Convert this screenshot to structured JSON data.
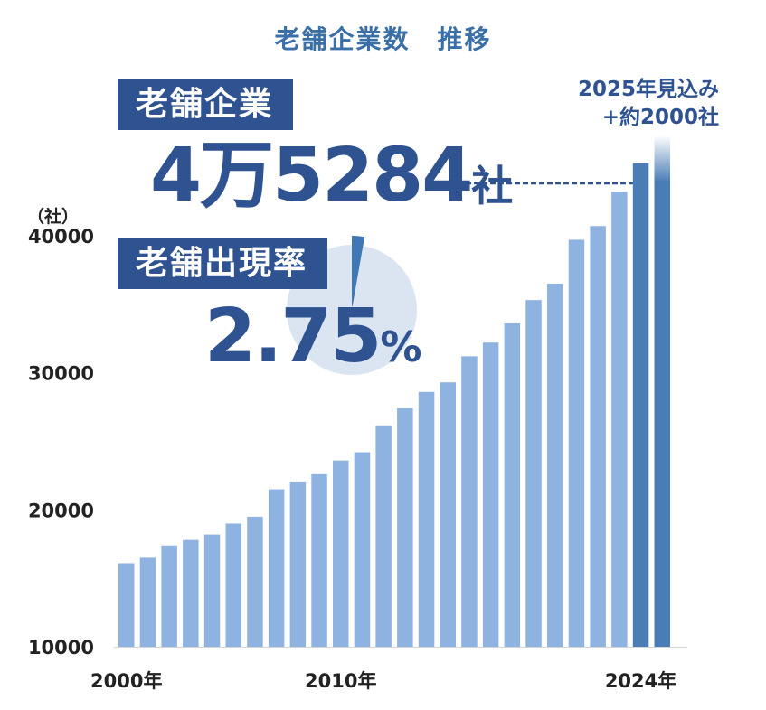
{
  "title": "老舗企業数　推移",
  "shinise": {
    "label": "老舗企業",
    "count_num": "4万5284",
    "count_unit": "社"
  },
  "rate": {
    "label": "老舗出現率",
    "value_num": "2.75",
    "value_unit": "%",
    "fraction": 0.0275
  },
  "projection": {
    "line1": "2025年見込み",
    "line2": "+約2000社"
  },
  "colors": {
    "bar": "#8fb3e0",
    "bar_recent": "#4a7db5",
    "accent": "#2f5391",
    "pie_bg": "#dbe5f2",
    "pie_slice": "#3f78b5"
  },
  "chart_data": {
    "type": "bar",
    "title": "老舗企業数　推移",
    "ylabel": "（社）",
    "ylim": [
      10000,
      45000
    ],
    "yticks": [
      "10000",
      "20000",
      "30000",
      "40000"
    ],
    "x": [
      2000,
      2001,
      2002,
      2003,
      2004,
      2005,
      2006,
      2007,
      2008,
      2009,
      2010,
      2011,
      2012,
      2013,
      2014,
      2015,
      2016,
      2017,
      2018,
      2019,
      2020,
      2021,
      2022,
      2023,
      2024,
      2025
    ],
    "values": [
      16100,
      16500,
      17400,
      17800,
      18200,
      19000,
      19500,
      21500,
      22000,
      22600,
      23600,
      24200,
      26100,
      27400,
      28600,
      29300,
      31200,
      32200,
      33600,
      35300,
      36500,
      39700,
      40700,
      43200,
      45284,
      47300
    ],
    "xtick_labels": [
      {
        "index": 0,
        "label": "2000年"
      },
      {
        "index": 10,
        "label": "2010年"
      },
      {
        "index": 24,
        "label": "2024年"
      }
    ]
  }
}
